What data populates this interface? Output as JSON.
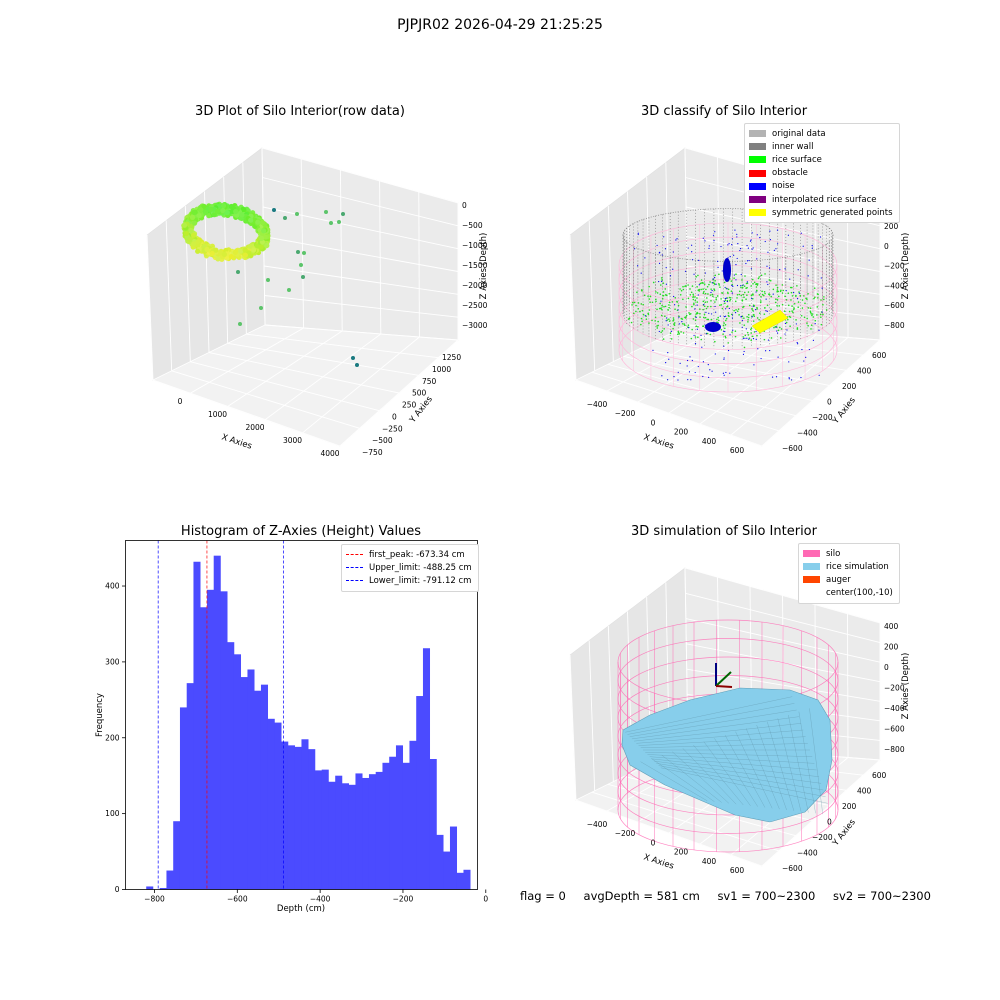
{
  "suptitle": "PJPJR02 2026-04-29 21:25:25",
  "status": {
    "flag": "flag = 0",
    "avg_depth": "avgDepth = 581 cm",
    "sv1": "sv1 = 700~2300",
    "sv2": "sv2 = 700~2300"
  },
  "panels": {
    "raw": {
      "title": "3D Plot of Silo Interior(row data)",
      "xlabel": "X Axies",
      "ylabel": "Y Axies",
      "zlabel": "Z Axies (Depth)",
      "xticks": [
        "0",
        "1000",
        "2000",
        "3000",
        "4000"
      ],
      "yticks": [
        "−750",
        "−500",
        "−250",
        "0",
        "250",
        "500",
        "750",
        "1000",
        "1250"
      ],
      "zticks": [
        "0",
        "−500",
        "−1000",
        "−1500",
        "−2000",
        "−2500",
        "−3000"
      ]
    },
    "classify": {
      "title": "3D classify of Silo Interior",
      "xlabel": "X Axies",
      "ylabel": "Y Axies",
      "zlabel": "Z Axies (Depth)",
      "xticks": [
        "−400",
        "−200",
        "0",
        "200",
        "400",
        "600"
      ],
      "yticks": [
        "−600",
        "−400",
        "−200",
        "0",
        "200",
        "400",
        "600"
      ],
      "zticks": [
        "200",
        "0",
        "−200",
        "−400",
        "−600",
        "−800"
      ],
      "legend": [
        {
          "label": "original data",
          "color": "#b3b3b3"
        },
        {
          "label": "inner wall",
          "color": "#808080"
        },
        {
          "label": "rice surface",
          "color": "#00ff00"
        },
        {
          "label": "obstacle",
          "color": "#ff0000"
        },
        {
          "label": "noise",
          "color": "#0000ff"
        },
        {
          "label": "interpolated rice surface",
          "color": "#800080"
        },
        {
          "label": "symmetric generated points",
          "color": "#ffff00"
        }
      ]
    },
    "simulation": {
      "title": "3D simulation of Silo Interior",
      "xlabel": "X Axies",
      "ylabel": "Y Axies",
      "zlabel": "Z Axies (Depth)",
      "xticks": [
        "−400",
        "−200",
        "0",
        "200",
        "400",
        "600"
      ],
      "yticks": [
        "−600",
        "−400",
        "−200",
        "0",
        "200",
        "400",
        "600"
      ],
      "zticks": [
        "400",
        "200",
        "0",
        "−200",
        "−400",
        "−600",
        "−800"
      ],
      "legend": [
        {
          "label": "silo",
          "color": "#ff69b4"
        },
        {
          "label": "rice simulation",
          "color": "#87ceeb"
        },
        {
          "label": "auger",
          "color": "#ff4500"
        },
        {
          "label": "center(100,-10)",
          "color": ""
        }
      ]
    }
  },
  "chart_data": {
    "type": "bar",
    "title": "Histogram of Z-Axies (Height) Values",
    "xlabel": "Depth (cm)",
    "ylabel": "Frequency",
    "xlim": [
      -870,
      -20
    ],
    "ylim": [
      0,
      460
    ],
    "xticks": [
      -800,
      -600,
      -400,
      -200,
      0
    ],
    "yticks": [
      0,
      100,
      200,
      300,
      400
    ],
    "bin_start": -820,
    "bin_width": 16.3,
    "values": [
      4,
      0,
      2,
      25,
      90,
      240,
      272,
      432,
      372,
      395,
      440,
      393,
      326,
      310,
      280,
      290,
      262,
      270,
      225,
      220,
      195,
      190,
      188,
      198,
      185,
      157,
      158,
      142,
      150,
      140,
      138,
      153,
      147,
      152,
      155,
      167,
      175,
      190,
      167,
      196,
      255,
      318,
      172,
      72,
      50,
      83,
      22,
      26
    ],
    "lines": [
      {
        "label": "first_peak: -673.34 cm",
        "x": -673.34,
        "color": "#ff0000"
      },
      {
        "label": "Upper_limit: -488.25 cm",
        "x": -488.25,
        "color": "#0000ff"
      },
      {
        "label": "Lower_limit: -791.12 cm",
        "x": -791.12,
        "color": "#0000ff"
      }
    ],
    "legend_position": "upper-right",
    "bar_color": "#4b4bff"
  }
}
